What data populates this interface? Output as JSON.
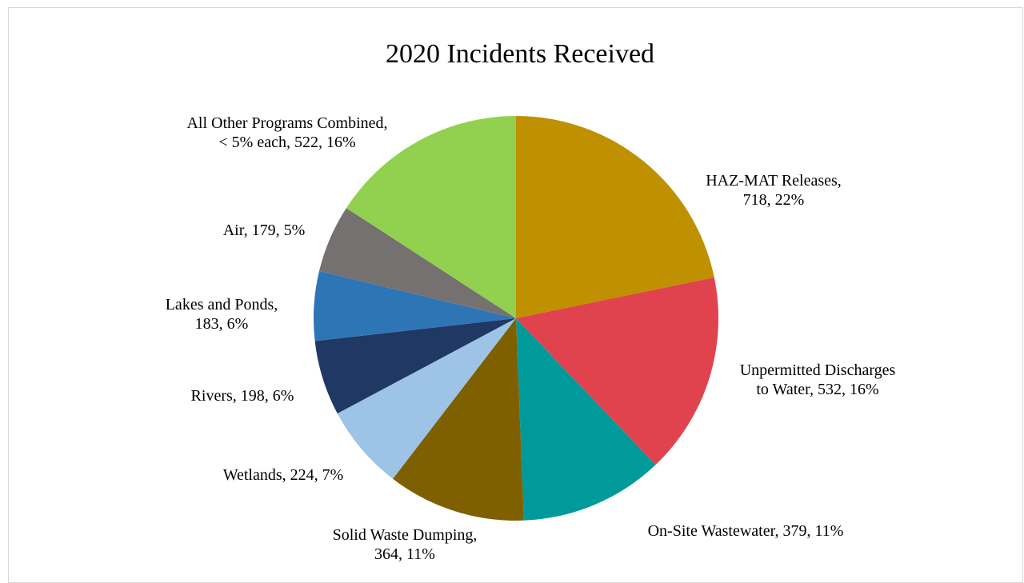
{
  "chart_data": {
    "type": "pie",
    "title": "2020 Incidents Received",
    "start_angle": "12 o'clock",
    "direction": "clockwise",
    "slices": [
      {
        "label": "HAZ-MAT Releases",
        "value": 718,
        "percent": "22%",
        "color": "#BF9000",
        "label_lines": [
          "HAZ-MAT Releases,",
          "718, 22%"
        ]
      },
      {
        "label": "Unpermitted Discharges to Water",
        "value": 532,
        "percent": "16%",
        "color": "#E0434E",
        "label_lines": [
          "Unpermitted Discharges",
          "to Water, 532, 16%"
        ]
      },
      {
        "label": "On-Site Wastewater",
        "value": 379,
        "percent": "11%",
        "color": "#009A9A",
        "label_lines": [
          "On-Site Wastewater, 379, 11%"
        ]
      },
      {
        "label": "Solid Waste Dumping",
        "value": 364,
        "percent": "11%",
        "color": "#7F6000",
        "label_lines": [
          "Solid Waste Dumping,",
          "364, 11%"
        ]
      },
      {
        "label": "Wetlands",
        "value": 224,
        "percent": "7%",
        "color": "#9DC3E6",
        "label_lines": [
          "Wetlands, 224, 7%"
        ]
      },
      {
        "label": "Rivers",
        "value": 198,
        "percent": "6%",
        "color": "#1F3864",
        "label_lines": [
          "Rivers, 198, 6%"
        ]
      },
      {
        "label": "Lakes and Ponds",
        "value": 183,
        "percent": "6%",
        "color": "#2E75B6",
        "label_lines": [
          "Lakes and Ponds,",
          "183, 6%"
        ]
      },
      {
        "label": "Air",
        "value": 179,
        "percent": "5%",
        "color": "#767171",
        "label_lines": [
          "Air, 179, 5%"
        ]
      },
      {
        "label": "All Other Programs Combined, < 5% each",
        "value": 522,
        "percent": "16%",
        "color": "#92D050",
        "label_lines": [
          "All Other Programs Combined,",
          "< 5% each, 522, 16%"
        ]
      }
    ]
  }
}
